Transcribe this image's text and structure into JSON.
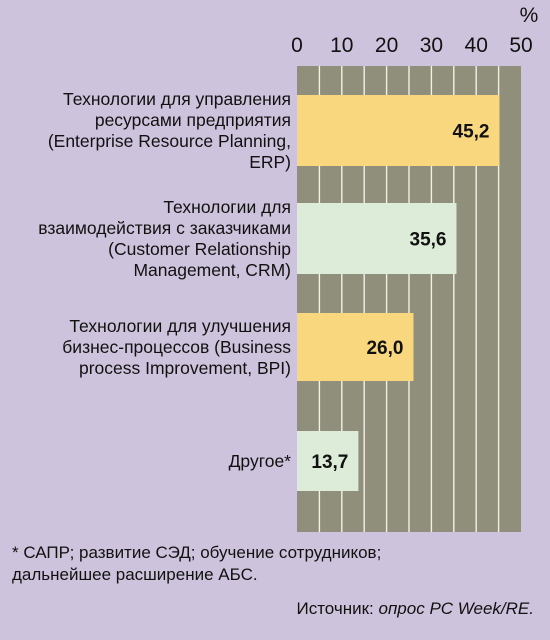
{
  "chart_data": {
    "type": "bar",
    "orientation": "horizontal",
    "unit": "%",
    "categories": [
      "Технологии для управления ресурсами предприятия (Enterprise Resource Planning, ERP)",
      "Технологии для взаимодействия с заказчиками (Customer Relationship Management, CRM)",
      "Технологии для улучшения бизнес-процессов (Business process Improvement, BPI)",
      "Другое*"
    ],
    "category_lines": [
      [
        "Технологии для управления",
        "ресурсами предприятия",
        "(Enterprise Resource Planning,",
        "ERP)"
      ],
      [
        "Технологии для",
        "взаимодействия с заказчиками",
        "(Customer Relationship",
        "Management, CRM)"
      ],
      [
        "Технологии для улучшения",
        "бизнес-процессов (Business",
        "process Improvement, BPI)"
      ],
      [
        "Другое*"
      ]
    ],
    "values": [
      45.2,
      35.6,
      26.0,
      13.7
    ],
    "value_labels": [
      "45,2",
      "35,6",
      "26,0",
      "13,7"
    ],
    "bar_colors": [
      "#f9d77f",
      "#dcecd8",
      "#f9d77f",
      "#dcecd8"
    ],
    "xlim": [
      0,
      50
    ],
    "xticks": [
      0,
      10,
      20,
      30,
      40,
      50
    ],
    "grid": true,
    "plot_background": "#8f8f7c",
    "grid_color": "#f3f0e6"
  },
  "footnote": "* САПР; развитие СЭД; обучение сотрудников;\nдальнейшее расширение АБС.",
  "source": {
    "prefix": "Источник: ",
    "text": "опрос PC Week/RE."
  }
}
